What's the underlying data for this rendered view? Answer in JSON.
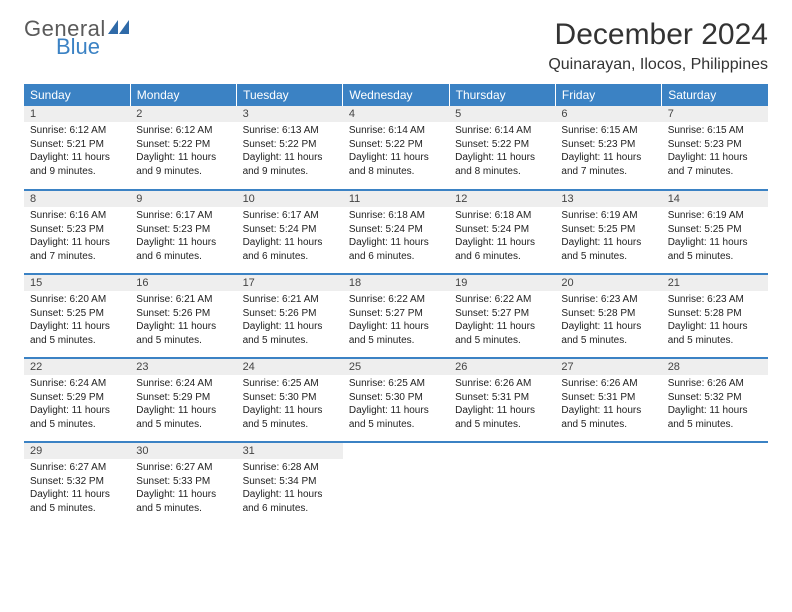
{
  "brand": {
    "text1": "General",
    "text2": "Blue",
    "mark_color": "#2f6aa8"
  },
  "title": "December 2024",
  "location": "Quinarayan, Ilocos, Philippines",
  "colors": {
    "header_bg": "#3b82c4",
    "header_fg": "#ffffff",
    "daynum_bg": "#eeeeee",
    "rule": "#3b82c4"
  },
  "weekdays": [
    "Sunday",
    "Monday",
    "Tuesday",
    "Wednesday",
    "Thursday",
    "Friday",
    "Saturday"
  ],
  "days": [
    {
      "n": "1",
      "sr": "6:12 AM",
      "ss": "5:21 PM",
      "dl": "11 hours and 9 minutes."
    },
    {
      "n": "2",
      "sr": "6:12 AM",
      "ss": "5:22 PM",
      "dl": "11 hours and 9 minutes."
    },
    {
      "n": "3",
      "sr": "6:13 AM",
      "ss": "5:22 PM",
      "dl": "11 hours and 9 minutes."
    },
    {
      "n": "4",
      "sr": "6:14 AM",
      "ss": "5:22 PM",
      "dl": "11 hours and 8 minutes."
    },
    {
      "n": "5",
      "sr": "6:14 AM",
      "ss": "5:22 PM",
      "dl": "11 hours and 8 minutes."
    },
    {
      "n": "6",
      "sr": "6:15 AM",
      "ss": "5:23 PM",
      "dl": "11 hours and 7 minutes."
    },
    {
      "n": "7",
      "sr": "6:15 AM",
      "ss": "5:23 PM",
      "dl": "11 hours and 7 minutes."
    },
    {
      "n": "8",
      "sr": "6:16 AM",
      "ss": "5:23 PM",
      "dl": "11 hours and 7 minutes."
    },
    {
      "n": "9",
      "sr": "6:17 AM",
      "ss": "5:23 PM",
      "dl": "11 hours and 6 minutes."
    },
    {
      "n": "10",
      "sr": "6:17 AM",
      "ss": "5:24 PM",
      "dl": "11 hours and 6 minutes."
    },
    {
      "n": "11",
      "sr": "6:18 AM",
      "ss": "5:24 PM",
      "dl": "11 hours and 6 minutes."
    },
    {
      "n": "12",
      "sr": "6:18 AM",
      "ss": "5:24 PM",
      "dl": "11 hours and 6 minutes."
    },
    {
      "n": "13",
      "sr": "6:19 AM",
      "ss": "5:25 PM",
      "dl": "11 hours and 5 minutes."
    },
    {
      "n": "14",
      "sr": "6:19 AM",
      "ss": "5:25 PM",
      "dl": "11 hours and 5 minutes."
    },
    {
      "n": "15",
      "sr": "6:20 AM",
      "ss": "5:25 PM",
      "dl": "11 hours and 5 minutes."
    },
    {
      "n": "16",
      "sr": "6:21 AM",
      "ss": "5:26 PM",
      "dl": "11 hours and 5 minutes."
    },
    {
      "n": "17",
      "sr": "6:21 AM",
      "ss": "5:26 PM",
      "dl": "11 hours and 5 minutes."
    },
    {
      "n": "18",
      "sr": "6:22 AM",
      "ss": "5:27 PM",
      "dl": "11 hours and 5 minutes."
    },
    {
      "n": "19",
      "sr": "6:22 AM",
      "ss": "5:27 PM",
      "dl": "11 hours and 5 minutes."
    },
    {
      "n": "20",
      "sr": "6:23 AM",
      "ss": "5:28 PM",
      "dl": "11 hours and 5 minutes."
    },
    {
      "n": "21",
      "sr": "6:23 AM",
      "ss": "5:28 PM",
      "dl": "11 hours and 5 minutes."
    },
    {
      "n": "22",
      "sr": "6:24 AM",
      "ss": "5:29 PM",
      "dl": "11 hours and 5 minutes."
    },
    {
      "n": "23",
      "sr": "6:24 AM",
      "ss": "5:29 PM",
      "dl": "11 hours and 5 minutes."
    },
    {
      "n": "24",
      "sr": "6:25 AM",
      "ss": "5:30 PM",
      "dl": "11 hours and 5 minutes."
    },
    {
      "n": "25",
      "sr": "6:25 AM",
      "ss": "5:30 PM",
      "dl": "11 hours and 5 minutes."
    },
    {
      "n": "26",
      "sr": "6:26 AM",
      "ss": "5:31 PM",
      "dl": "11 hours and 5 minutes."
    },
    {
      "n": "27",
      "sr": "6:26 AM",
      "ss": "5:31 PM",
      "dl": "11 hours and 5 minutes."
    },
    {
      "n": "28",
      "sr": "6:26 AM",
      "ss": "5:32 PM",
      "dl": "11 hours and 5 minutes."
    },
    {
      "n": "29",
      "sr": "6:27 AM",
      "ss": "5:32 PM",
      "dl": "11 hours and 5 minutes."
    },
    {
      "n": "30",
      "sr": "6:27 AM",
      "ss": "5:33 PM",
      "dl": "11 hours and 5 minutes."
    },
    {
      "n": "31",
      "sr": "6:28 AM",
      "ss": "5:34 PM",
      "dl": "11 hours and 6 minutes."
    }
  ],
  "labels": {
    "sunrise": "Sunrise:",
    "sunset": "Sunset:",
    "daylight": "Daylight:"
  }
}
